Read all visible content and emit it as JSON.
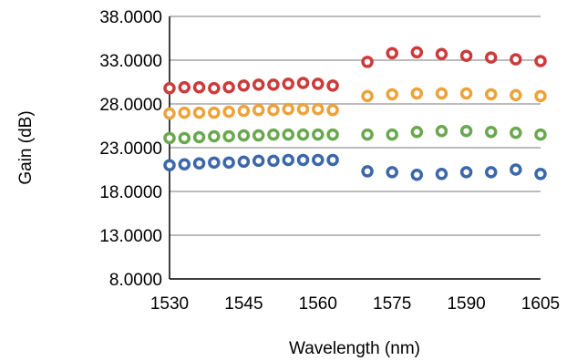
{
  "chart_data": {
    "type": "scatter",
    "xlabel": "Wavelength (nm)",
    "ylabel": "Gain (dB)",
    "xlim": [
      1530,
      1605
    ],
    "ylim": [
      8,
      38
    ],
    "xticks": [
      1530,
      1545,
      1560,
      1575,
      1590,
      1605
    ],
    "xtick_labels": [
      "1530",
      "1545",
      "1560",
      "1575",
      "1590",
      "1605"
    ],
    "yticks": [
      8,
      13,
      18,
      23,
      28,
      33,
      38
    ],
    "ytick_labels": [
      "8.0000",
      "13.0000",
      "18.0000",
      "23.0000",
      "28.0000",
      "33.0000",
      "38.0000"
    ],
    "grid": "horizontal",
    "legend": "none",
    "x": [
      1530,
      1533,
      1536,
      1539,
      1542,
      1545,
      1548,
      1551,
      1554,
      1557,
      1560,
      1563,
      1570,
      1575,
      1580,
      1585,
      1590,
      1595,
      1600,
      1605
    ],
    "series": [
      {
        "color": "#CC3B3B",
        "values": [
          29.8,
          29.9,
          29.9,
          29.8,
          29.9,
          30.1,
          30.2,
          30.2,
          30.3,
          30.4,
          30.3,
          30.1,
          32.8,
          33.8,
          33.9,
          33.7,
          33.5,
          33.3,
          33.1,
          32.9
        ]
      },
      {
        "color": "#EBA33C",
        "values": [
          26.9,
          27.0,
          27.0,
          27.0,
          27.1,
          27.2,
          27.3,
          27.3,
          27.4,
          27.4,
          27.4,
          27.3,
          28.9,
          29.1,
          29.2,
          29.2,
          29.2,
          29.1,
          29.0,
          28.9
        ]
      },
      {
        "color": "#6AA84F",
        "values": [
          24.1,
          24.1,
          24.2,
          24.3,
          24.3,
          24.4,
          24.4,
          24.5,
          24.5,
          24.5,
          24.5,
          24.5,
          24.5,
          24.5,
          24.8,
          24.9,
          24.9,
          24.8,
          24.7,
          24.5
        ]
      },
      {
        "color": "#3C67A8",
        "values": [
          21.0,
          21.1,
          21.2,
          21.3,
          21.3,
          21.4,
          21.5,
          21.5,
          21.6,
          21.6,
          21.6,
          21.6,
          20.3,
          20.2,
          19.9,
          20.0,
          20.2,
          20.2,
          20.5,
          20.0
        ]
      }
    ]
  }
}
